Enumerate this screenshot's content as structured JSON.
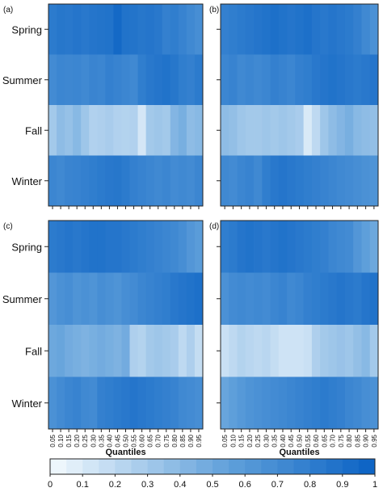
{
  "chart_data": [
    {
      "panel": "(a)",
      "type": "heatmap",
      "rows": [
        "Spring",
        "Summer",
        "Fall",
        "Winter"
      ],
      "columns": [
        "0.05",
        "0.10",
        "0.15",
        "0.20",
        "0.25",
        "0.30",
        "0.35",
        "0.40",
        "0.45",
        "0.50",
        "0.55",
        "0.60",
        "0.65",
        "0.70",
        "0.75",
        "0.80",
        "0.85",
        "0.90",
        "0.95"
      ],
      "xlabel": "",
      "values": [
        [
          0.82,
          0.85,
          0.84,
          0.86,
          0.84,
          0.86,
          0.87,
          0.88,
          0.95,
          0.88,
          0.87,
          0.85,
          0.86,
          0.84,
          0.78,
          0.8,
          0.76,
          0.72,
          0.68
        ],
        [
          0.7,
          0.74,
          0.73,
          0.74,
          0.72,
          0.75,
          0.74,
          0.78,
          0.76,
          0.74,
          0.72,
          0.8,
          0.84,
          0.86,
          0.88,
          0.85,
          0.8,
          0.78,
          0.82
        ],
        [
          0.3,
          0.38,
          0.35,
          0.4,
          0.32,
          0.25,
          0.26,
          0.28,
          0.25,
          0.24,
          0.25,
          0.12,
          0.3,
          0.32,
          0.3,
          0.42,
          0.46,
          0.38,
          0.4
        ],
        [
          0.74,
          0.72,
          0.75,
          0.76,
          0.78,
          0.8,
          0.82,
          0.84,
          0.85,
          0.82,
          0.78,
          0.76,
          0.74,
          0.72,
          0.74,
          0.7,
          0.72,
          0.7,
          0.74
        ]
      ]
    },
    {
      "panel": "(b)",
      "type": "heatmap",
      "rows": [
        "Spring",
        "Summer",
        "Fall",
        "Winter"
      ],
      "columns": [
        "0.05",
        "0.10",
        "0.15",
        "0.20",
        "0.25",
        "0.30",
        "0.35",
        "0.40",
        "0.45",
        "0.50",
        "0.55",
        "0.60",
        "0.65",
        "0.70",
        "0.75",
        "0.80",
        "0.85",
        "0.90",
        "0.95"
      ],
      "xlabel": "",
      "values": [
        [
          0.78,
          0.8,
          0.82,
          0.84,
          0.86,
          0.88,
          0.9,
          0.88,
          0.86,
          0.88,
          0.9,
          0.86,
          0.84,
          0.86,
          0.84,
          0.82,
          0.78,
          0.72,
          0.66
        ],
        [
          0.74,
          0.76,
          0.72,
          0.74,
          0.72,
          0.74,
          0.78,
          0.76,
          0.74,
          0.78,
          0.8,
          0.84,
          0.86,
          0.88,
          0.86,
          0.84,
          0.82,
          0.84,
          0.86
        ],
        [
          0.38,
          0.36,
          0.32,
          0.3,
          0.3,
          0.32,
          0.3,
          0.32,
          0.3,
          0.28,
          0.1,
          0.2,
          0.32,
          0.38,
          0.42,
          0.46,
          0.4,
          0.38,
          0.36
        ],
        [
          0.72,
          0.7,
          0.74,
          0.76,
          0.72,
          0.8,
          0.84,
          0.86,
          0.84,
          0.82,
          0.8,
          0.78,
          0.76,
          0.74,
          0.72,
          0.7,
          0.68,
          0.66,
          0.64
        ]
      ]
    },
    {
      "panel": "(c)",
      "type": "heatmap",
      "rows": [
        "Spring",
        "Summer",
        "Fall",
        "Winter"
      ],
      "columns": [
        "0.05",
        "0.10",
        "0.15",
        "0.20",
        "0.25",
        "0.30",
        "0.35",
        "0.40",
        "0.45",
        "0.50",
        "0.55",
        "0.60",
        "0.65",
        "0.70",
        "0.75",
        "0.80",
        "0.85",
        "0.90",
        "0.95"
      ],
      "xlabel": "Quantiles",
      "values": [
        [
          0.82,
          0.84,
          0.86,
          0.84,
          0.86,
          0.88,
          0.88,
          0.86,
          0.86,
          0.84,
          0.82,
          0.8,
          0.78,
          0.76,
          0.74,
          0.72,
          0.68,
          0.62,
          0.58
        ],
        [
          0.62,
          0.66,
          0.68,
          0.64,
          0.66,
          0.64,
          0.68,
          0.66,
          0.64,
          0.68,
          0.7,
          0.74,
          0.76,
          0.78,
          0.8,
          0.84,
          0.86,
          0.88,
          0.9
        ],
        [
          0.5,
          0.52,
          0.48,
          0.46,
          0.44,
          0.46,
          0.48,
          0.46,
          0.44,
          0.48,
          0.26,
          0.24,
          0.3,
          0.32,
          0.3,
          0.28,
          0.2,
          0.26,
          0.18
        ],
        [
          0.66,
          0.7,
          0.74,
          0.76,
          0.72,
          0.7,
          0.78,
          0.8,
          0.82,
          0.84,
          0.86,
          0.84,
          0.82,
          0.8,
          0.78,
          0.76,
          0.72,
          0.7,
          0.68
        ]
      ]
    },
    {
      "panel": "(d)",
      "type": "heatmap",
      "rows": [
        "Spring",
        "Summer",
        "Fall",
        "Winter"
      ],
      "columns": [
        "0.05",
        "0.10",
        "0.15",
        "0.20",
        "0.25",
        "0.30",
        "0.35",
        "0.40",
        "0.45",
        "0.50",
        "0.55",
        "0.60",
        "0.65",
        "0.70",
        "0.75",
        "0.80",
        "0.85",
        "0.90",
        "0.95"
      ],
      "xlabel": "Quantiles",
      "values": [
        [
          0.8,
          0.82,
          0.86,
          0.88,
          0.86,
          0.84,
          0.86,
          0.88,
          0.86,
          0.84,
          0.82,
          0.8,
          0.78,
          0.74,
          0.72,
          0.7,
          0.62,
          0.56,
          0.5
        ],
        [
          0.66,
          0.7,
          0.72,
          0.7,
          0.72,
          0.7,
          0.74,
          0.76,
          0.72,
          0.74,
          0.78,
          0.8,
          0.82,
          0.84,
          0.86,
          0.84,
          0.82,
          0.86,
          0.88
        ],
        [
          0.16,
          0.2,
          0.24,
          0.22,
          0.2,
          0.22,
          0.18,
          0.14,
          0.14,
          0.14,
          0.16,
          0.26,
          0.3,
          0.32,
          0.34,
          0.32,
          0.36,
          0.4,
          0.3
        ],
        [
          0.52,
          0.56,
          0.6,
          0.64,
          0.66,
          0.68,
          0.7,
          0.72,
          0.74,
          0.76,
          0.78,
          0.8,
          0.82,
          0.8,
          0.78,
          0.74,
          0.72,
          0.68,
          0.66
        ]
      ]
    }
  ],
  "colorbar": {
    "ticks": [
      "0",
      "0.1",
      "0.2",
      "0.3",
      "0.4",
      "0.5",
      "0.6",
      "0.7",
      "0.8",
      "0.9",
      "1"
    ],
    "low_color": "#f4fafe",
    "high_color": "#0a62c4"
  }
}
